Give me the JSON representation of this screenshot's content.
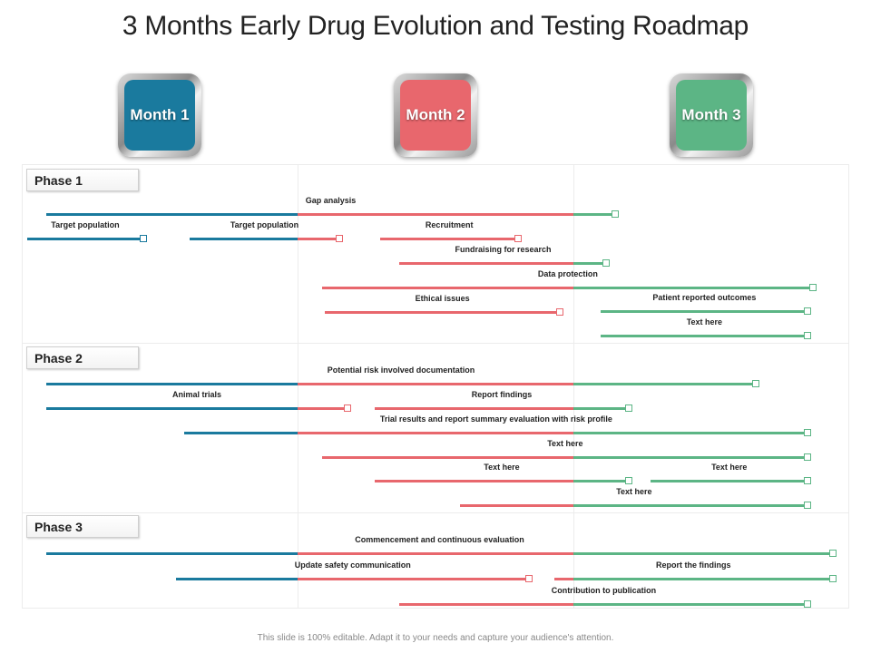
{
  "title": "3 Months Early Drug Evolution and Testing Roadmap",
  "footer": "This slide is 100% editable. Adapt it to your needs and capture your audience's attention.",
  "colors": {
    "month1": "#1a7a9e",
    "month2": "#e8676d",
    "month3": "#5cb585"
  },
  "months": [
    {
      "label": "Month 1",
      "color": "#1a7a9e"
    },
    {
      "label": "Month 2",
      "color": "#e8676d"
    },
    {
      "label": "Month 3",
      "color": "#5cb585"
    }
  ],
  "timeline": {
    "start": 0,
    "end": 3
  },
  "phases": [
    {
      "label": "Phase 1",
      "tasks": [
        {
          "label": "Gap analysis",
          "start": 0.09,
          "end": 2.15
        },
        {
          "label": "Target population",
          "start": 0.02,
          "end": 0.44
        },
        {
          "label": "Target population",
          "start": 0.61,
          "end": 1.15
        },
        {
          "label": "Recruitment",
          "start": 1.3,
          "end": 1.8
        },
        {
          "label": "Fundraising for research",
          "start": 1.37,
          "end": 2.12
        },
        {
          "label": "Data protection",
          "start": 1.09,
          "end": 2.87
        },
        {
          "label": "Ethical issues",
          "start": 1.1,
          "end": 1.95
        },
        {
          "label": "Patient reported outcomes",
          "start": 2.1,
          "end": 2.85
        },
        {
          "label": "Text here",
          "start": 2.1,
          "end": 2.85
        }
      ]
    },
    {
      "label": "Phase 2",
      "tasks": [
        {
          "label": "Potential risk involved documentation",
          "start": 0.09,
          "end": 2.66
        },
        {
          "label": "Animal trials",
          "start": 0.09,
          "end": 1.18
        },
        {
          "label": "Report findings",
          "start": 1.28,
          "end": 2.2
        },
        {
          "label": "Trial results and report summary evaluation with risk profile",
          "start": 0.59,
          "end": 2.85
        },
        {
          "label": "Text here",
          "start": 1.09,
          "end": 2.85
        },
        {
          "label": "Text here",
          "start": 1.28,
          "end": 2.2
        },
        {
          "label": "Text here",
          "start": 2.28,
          "end": 2.85
        },
        {
          "label": "Text here",
          "start": 1.59,
          "end": 2.85
        }
      ]
    },
    {
      "label": "Phase 3",
      "tasks": [
        {
          "label": "Commencement and continuous evaluation",
          "start": 0.09,
          "end": 2.94
        },
        {
          "label": "Update safety communication",
          "start": 0.56,
          "end": 1.84
        },
        {
          "label": "Report the findings",
          "start": 1.93,
          "end": 2.94
        },
        {
          "label": "Contribution to publication",
          "start": 1.37,
          "end": 2.85
        }
      ]
    }
  ]
}
